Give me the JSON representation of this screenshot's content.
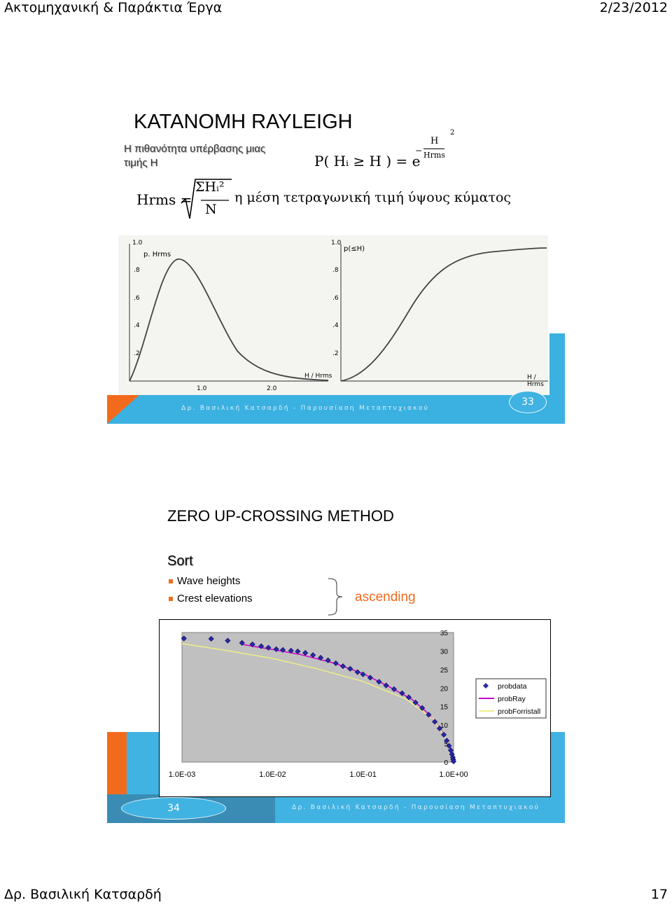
{
  "header": {
    "title": "Ακτομηχανική & Παράκτια Έργα",
    "date": "2/23/2012"
  },
  "footer": {
    "author": "Δρ. Βασιλική Κατσαρδή",
    "page": "17"
  },
  "slide1": {
    "title": "ΚΑΤΑΝΟΜΗ RAYLEIGH",
    "subtitle_line1": "Η πιθανότητα υπέρβασης μιας",
    "subtitle_line2": "τιμής Η",
    "formula_p": "P( Hᵢ ≥ H ) = e",
    "exp_num": "H",
    "exp_den": "Hrms",
    "exp_pow": "2",
    "hrms_lhs": "Hrms =",
    "hrms_num": "ΣHᵢ²",
    "hrms_den": "N",
    "description": "η μέση τετραγωνική τιμή ύψους κύματος",
    "plot_left": {
      "ylabel": "p. Hrms",
      "xlabel": "H / Hrms",
      "yticks": [
        "1.0",
        ".8",
        ".6",
        ".4",
        ".2"
      ],
      "xticks": [
        "1.0",
        "2.0"
      ]
    },
    "plot_right": {
      "ylabel": "p(≤H)",
      "xlabel": "H / Hrms",
      "yticks": [
        "1.0",
        ".8",
        ".6",
        ".4",
        ".2"
      ]
    },
    "footer_text": "Δρ. Βασιλική Κατσαρδή - Παρουσίαση Μεταπτυχιακού",
    "slide_number": "33",
    "colors": {
      "blue": "#41b3e2",
      "orange": "#f26b1d",
      "dark_blue": "#2a7aa0"
    }
  },
  "slide2": {
    "title": "ZERO UP-CROSSING METHOD",
    "sort_label": "Sort",
    "bullets": [
      "Wave heights",
      "Crest elevations"
    ],
    "ascending": "ascending",
    "slide_number": "34",
    "footer_text": "Δρ. Βασιλική Κατσαρδή - Παρουσίαση Μεταπτυχιακού"
  },
  "chart_data": {
    "type": "scatter",
    "x_scale": "log",
    "xlim": [
      0.001,
      1.0
    ],
    "ylim": [
      0,
      35
    ],
    "xticks": [
      "1.0E-03",
      "1.0E-02",
      "1.0E-01",
      "1.0E+00"
    ],
    "yticks": [
      "0",
      "5",
      "10",
      "15",
      "20",
      "25",
      "30",
      "35"
    ],
    "legend_position": "right",
    "series": [
      {
        "name": "probdata",
        "marker": "diamond",
        "color": "#1f1f8f",
        "x": [
          0.00105,
          0.0021,
          0.0032,
          0.0046,
          0.006,
          0.0075,
          0.009,
          0.011,
          0.013,
          0.016,
          0.019,
          0.023,
          0.028,
          0.034,
          0.041,
          0.05,
          0.06,
          0.072,
          0.087,
          0.1,
          0.12,
          0.15,
          0.18,
          0.22,
          0.27,
          0.32,
          0.38,
          0.45,
          0.53,
          0.62,
          0.7,
          0.78,
          0.84,
          0.89,
          0.93,
          0.96,
          0.98,
          0.99,
          1.0
        ],
        "y": [
          33.4,
          33.3,
          32.8,
          32.2,
          31.8,
          31.3,
          30.9,
          30.5,
          30.3,
          30.1,
          29.9,
          29.5,
          28.9,
          28.2,
          27.5,
          26.7,
          25.9,
          25.2,
          24.3,
          23.7,
          22.8,
          21.7,
          20.7,
          19.7,
          18.6,
          17.5,
          16.1,
          14.6,
          12.8,
          10.9,
          9.1,
          7.4,
          5.8,
          4.4,
          3.2,
          2.1,
          1.3,
          0.7,
          0.2
        ]
      },
      {
        "name": "probRay",
        "color": "#cc00cc",
        "x": [
          0.0046,
          0.01,
          0.02,
          0.05,
          0.1,
          0.2,
          0.35,
          0.5,
          0.7,
          0.85,
          0.95,
          1.0
        ],
        "y": [
          31.8,
          30.4,
          29.1,
          26.6,
          23.9,
          20.2,
          16.9,
          13.6,
          9.4,
          6.0,
          3.0,
          0.0
        ]
      },
      {
        "name": "probForristall",
        "color": "#eeee88",
        "x": [
          0.001,
          0.003,
          0.01,
          0.03,
          0.1,
          0.3,
          0.6,
          0.85,
          1.0
        ],
        "y": [
          32.0,
          30.2,
          28.0,
          25.3,
          21.8,
          17.0,
          11.5,
          6.0,
          0.0
        ]
      }
    ]
  }
}
